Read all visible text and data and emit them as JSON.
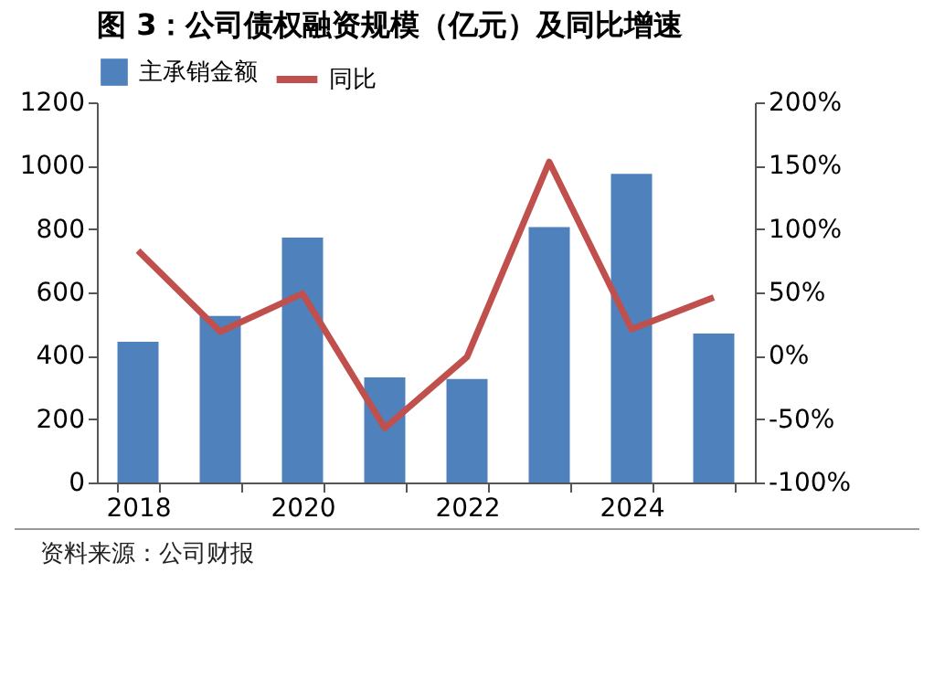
{
  "chart_data": {
    "type": "bar",
    "title": "图 3：公司债权融资规模（亿元）及同比增速",
    "categories": [
      "2018",
      null,
      "2020",
      null,
      "2022",
      null,
      "2024",
      null
    ],
    "series": [
      {
        "name": "主承销金额",
        "color": "#4f81bd",
        "values": [
          444,
          526,
          773,
          332,
          327,
          806,
          974,
          470
        ]
      },
      {
        "name": "同比",
        "type": "line",
        "axis": "y2",
        "color": "#c0504d",
        "values": [
          83,
          19,
          49,
          -57,
          -1,
          153,
          21,
          46
        ]
      }
    ],
    "ylim": [
      0,
      1200
    ],
    "yticks": [
      0,
      200,
      400,
      600,
      800,
      1000,
      1200
    ],
    "y2lim": [
      -100,
      200
    ],
    "y2ticks": [
      {
        "value": -100,
        "label": "-100%"
      },
      {
        "value": -50,
        "label": "-50%"
      },
      {
        "value": 0,
        "label": "0%"
      },
      {
        "value": 50,
        "label": "50%"
      },
      {
        "value": 100,
        "label": "100%"
      },
      {
        "value": 150,
        "label": "150%"
      },
      {
        "value": 200,
        "label": "200%"
      }
    ],
    "legend": "top",
    "grid": false,
    "line_style": "solid",
    "annotations": [
      "资料来源：公司财报"
    ]
  }
}
